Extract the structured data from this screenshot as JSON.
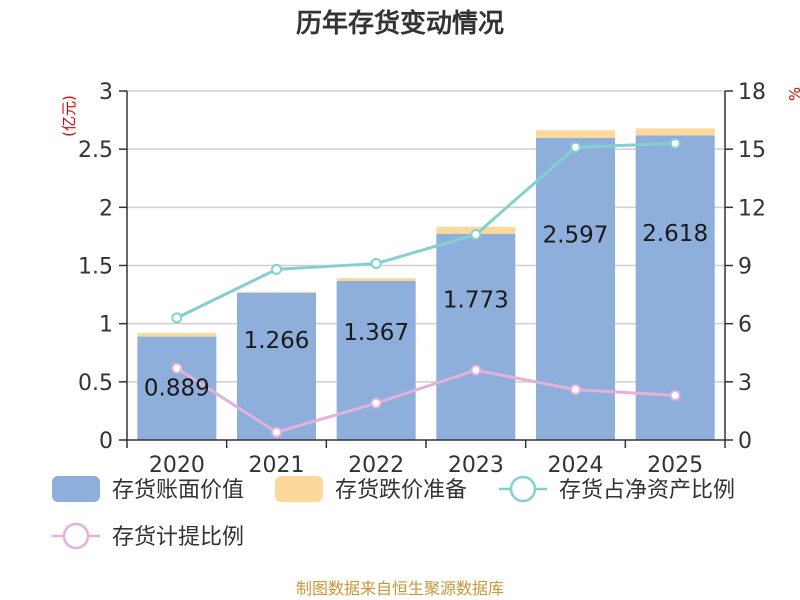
{
  "colors": {
    "book_value": "#8eaedb",
    "provision": "#fcd99a",
    "inventory_ratio": "#84d0d1",
    "provision_ratio": "#e4b1d8",
    "unit": "#e00000",
    "source": "#c8973a"
  },
  "chart_data": {
    "type": "bar",
    "title": "历年存货变动情况",
    "left_axis_unit": "(亿元)",
    "right_axis_unit": "%",
    "categories": [
      "2020",
      "2021",
      "2022",
      "2023",
      "2024",
      "2025"
    ],
    "ylim_left": [
      0,
      3
    ],
    "yticks_left": [
      0,
      0.5,
      1,
      1.5,
      2,
      2.5,
      3
    ],
    "ylim_right": [
      0,
      18
    ],
    "yticks_right": [
      0,
      3,
      6,
      9,
      12,
      15,
      18
    ],
    "grid": true,
    "legend_position": "bottom",
    "series": [
      {
        "name": "存货账面价值",
        "type": "bar",
        "axis": "left",
        "stack": "total",
        "values": [
          0.889,
          1.266,
          1.367,
          1.773,
          2.597,
          2.618
        ],
        "labels": [
          "0.889",
          "1.266",
          "1.367",
          "1.773",
          "2.597",
          "2.618"
        ]
      },
      {
        "name": "存货跌价准备",
        "type": "bar",
        "axis": "left",
        "stack": "total",
        "values": [
          0.03,
          0.008,
          0.025,
          0.06,
          0.065,
          0.06
        ]
      },
      {
        "name": "存货占净资产比例",
        "type": "line",
        "axis": "right",
        "values": [
          6.3,
          8.8,
          9.1,
          10.6,
          15.1,
          15.3
        ]
      },
      {
        "name": "存货计提比例",
        "type": "line",
        "axis": "right",
        "values": [
          3.7,
          0.4,
          1.9,
          3.6,
          2.6,
          2.3
        ]
      }
    ]
  },
  "source": "制图数据来自恒生聚源数据库"
}
